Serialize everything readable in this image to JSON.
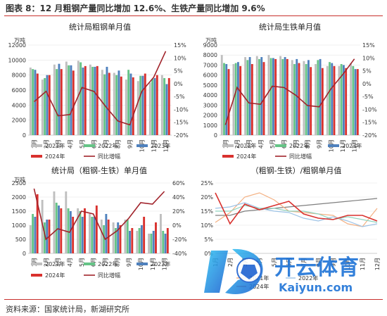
{
  "figure_title": "图表 8：12 月粗钢产量同比增加 12.6%、生铁产量同比增加 9.6%",
  "source": "资料来源：国家统计局，新湖研究所",
  "watermark": {
    "brand": "开云体育",
    "url": "Kaiyun.com"
  },
  "colors": {
    "s2021": "#bfbfbf",
    "s2022": "#66c487",
    "s2023": "#4f81bd",
    "s2024": "#d9312e",
    "yoy": "#a1232b",
    "ratio2021": "#f4b183",
    "ratio2022": "#9dc3e6",
    "ratio2024": "#d9312e",
    "ratioOther": "#7f7f7f",
    "ratioTeal": "#8fd3bf",
    "title_rule": "#c9302c"
  },
  "chart_data": [
    {
      "id": "crude",
      "type": "bar",
      "title": "统计局粗钢单月值",
      "unit_label": "万吨",
      "categories": [
        "1月",
        "2月",
        "3月",
        "4月",
        "5月",
        "6月",
        "7月",
        "8月",
        "9月",
        "10月",
        "11月",
        "12月"
      ],
      "ylim": [
        0,
        12000
      ],
      "yticks": [
        0,
        2000,
        4000,
        6000,
        8000,
        10000,
        12000
      ],
      "y2lim": [
        -20,
        15
      ],
      "y2ticks": [
        -20,
        -15,
        -10,
        -5,
        0,
        5,
        10,
        15
      ],
      "y2tick_labels": [
        "-20%",
        "-15%",
        "-10%",
        "-5%",
        "0%",
        "5%",
        "10%",
        "15%"
      ],
      "series": [
        {
          "name": "2021年",
          "color_key": "s2021",
          "values": [
            9000,
            7400,
            9400,
            9800,
            9900,
            9400,
            8700,
            8300,
            7400,
            7200,
            7000,
            8000
          ]
        },
        {
          "name": "2022年",
          "color_key": "s2022",
          "values": [
            8800,
            7600,
            8800,
            9300,
            9700,
            9100,
            8100,
            8000,
            8700,
            7900,
            7500,
            7600
          ]
        },
        {
          "name": "2023年",
          "color_key": "s2023",
          "values": [
            8700,
            8000,
            9500,
            9300,
            9000,
            9100,
            9100,
            8600,
            8200,
            7900,
            7600,
            6800
          ]
        },
        {
          "name": "2024年",
          "color_key": "s2024",
          "values": [
            8200,
            8000,
            8800,
            8600,
            9200,
            9200,
            8300,
            7800,
            7700,
            8200,
            8000,
            7600
          ]
        }
      ],
      "line": {
        "name": "同比增幅",
        "color_key": "yoy",
        "values": [
          -7.0,
          -3.0,
          -12.5,
          -12.0,
          -1.5,
          -3.0,
          -9.0,
          -14.5,
          -16.0,
          -3.0,
          2.5,
          12.6
        ]
      }
    },
    {
      "id": "pig",
      "type": "bar",
      "title": "统计局生铁单月值",
      "unit_label": "万吨",
      "categories": [
        "1月",
        "2月",
        "3月",
        "4月",
        "5月",
        "6月",
        "7月",
        "8月",
        "9月",
        "10月",
        "11月",
        "12月"
      ],
      "ylim": [
        0,
        9000
      ],
      "yticks": [
        0,
        1000,
        2000,
        3000,
        4000,
        5000,
        6000,
        7000,
        8000,
        9000
      ],
      "y2lim": [
        -20,
        15
      ],
      "y2ticks": [
        -20,
        -15,
        -10,
        -5,
        0,
        5,
        10,
        15
      ],
      "y2tick_labels": [
        "-20%",
        "-15%",
        "-10%",
        "-5%",
        "0%",
        "5%",
        "10%",
        "15%"
      ],
      "series": [
        {
          "name": "2021年",
          "color_key": "s2021",
          "values": [
            8000,
            7100,
            7800,
            7900,
            8000,
            7900,
            7500,
            7400,
            7100,
            6900,
            6900,
            7200
          ]
        },
        {
          "name": "2022年",
          "color_key": "s2022",
          "values": [
            7200,
            7200,
            7500,
            7600,
            7700,
            7600,
            7100,
            7100,
            7500,
            7300,
            7100,
            6900
          ]
        },
        {
          "name": "2023年",
          "color_key": "s2023",
          "values": [
            7100,
            7300,
            7800,
            7800,
            7700,
            7800,
            7600,
            7500,
            7600,
            7200,
            7000,
            6600
          ]
        },
        {
          "name": "2024年",
          "color_key": "s2024",
          "values": [
            6600,
            6900,
            7100,
            7300,
            7600,
            7600,
            7200,
            6800,
            6700,
            6900,
            6700,
            6600
          ]
        }
      ],
      "line": {
        "name": "同比增幅",
        "color_key": "yoy",
        "values": [
          -16.0,
          -1.5,
          -7.5,
          -8.0,
          -1.0,
          -1.5,
          -4.5,
          -8.5,
          -9.0,
          -2.0,
          3.5,
          9.6
        ]
      }
    },
    {
      "id": "diff",
      "type": "bar",
      "title": "统计局（粗钢-生铁）单月值",
      "unit_label": "万吨",
      "categories": [
        "1月",
        "2月",
        "3月",
        "4月",
        "5月",
        "6月",
        "7月",
        "8月",
        "9月",
        "10月",
        "11月",
        "12月"
      ],
      "ylim": [
        0,
        2500
      ],
      "yticks": [
        0,
        500,
        1000,
        1500,
        2000,
        2500
      ],
      "y2lim": [
        -40,
        60
      ],
      "y2ticks": [
        -40,
        -20,
        0,
        20,
        40,
        60
      ],
      "y2tick_labels": [
        "-40%",
        "-20%",
        "0%",
        "20%",
        "40%",
        "60%"
      ],
      "series": [
        {
          "name": "2021年",
          "color_key": "s2021",
          "values": [
            1000,
            1900,
            2200,
            2200,
            1600,
            1400,
            1200,
            1100,
            1200,
            800,
            700,
            1400
          ]
        },
        {
          "name": "2022年",
          "color_key": "s2022",
          "values": [
            1400,
            1100,
            1800,
            1600,
            1500,
            1300,
            1000,
            900,
            1200,
            900,
            700,
            800
          ]
        },
        {
          "name": "2023年",
          "color_key": "s2023",
          "values": [
            1300,
            1200,
            1700,
            1500,
            1300,
            1300,
            1400,
            1100,
            800,
            1000,
            800,
            700
          ]
        },
        {
          "name": "2024年",
          "color_key": "s2024",
          "values": [
            2100,
            1200,
            1600,
            1300,
            1600,
            1700,
            1200,
            1000,
            900,
            1300,
            1100,
            900
          ]
        }
      ],
      "line": {
        "name": "同比增幅",
        "color_key": "yoy",
        "values": [
          52,
          -20,
          -5,
          -10,
          20,
          16,
          -20,
          -8,
          10,
          32,
          30,
          48
        ]
      }
    },
    {
      "id": "ratio",
      "type": "line",
      "title": "（粗钢-生铁）/粗钢单月值",
      "categories": [
        "1月",
        "2月",
        "3月",
        "4月",
        "5月",
        "6月",
        "7月",
        "8月",
        "9月",
        "10月",
        "11月",
        "12月"
      ],
      "ylim": [
        0,
        25
      ],
      "yticks": [
        0,
        5,
        10,
        15,
        20,
        25
      ],
      "ytick_labels": [
        "0%",
        "5%",
        "10%",
        "15%",
        "20%",
        "25%"
      ],
      "series": [
        {
          "name": "",
          "color_key": "ratioOther",
          "values": [
            13.5,
            13.5,
            15,
            15.5,
            16,
            16.5,
            17,
            17.5,
            18,
            18.5,
            19,
            19.5
          ]
        },
        {
          "name": "2021年",
          "color_key": "ratio2021",
          "values": [
            11,
            14.5,
            20,
            21.5,
            19,
            15,
            14.5,
            14,
            13.5,
            10.5,
            9.5,
            16
          ]
        },
        {
          "name": "2022年",
          "color_key": "ratio2022",
          "values": [
            16,
            16.5,
            18,
            16,
            15,
            14.5,
            12.5,
            11.5,
            13,
            11.5,
            9.5,
            10.5
          ]
        },
        {
          "name": "",
          "color_key": "ratioTeal",
          "values": [
            15,
            15,
            17,
            16,
            16,
            15,
            15,
            14,
            12,
            13,
            12,
            11
          ]
        },
        {
          "name": "2024年",
          "color_key": "ratio2024",
          "values": [
            21.5,
            10.5,
            17.5,
            15.5,
            17,
            18.5,
            14,
            12.5,
            12,
            13.5,
            13.5,
            11.5
          ]
        }
      ]
    }
  ]
}
